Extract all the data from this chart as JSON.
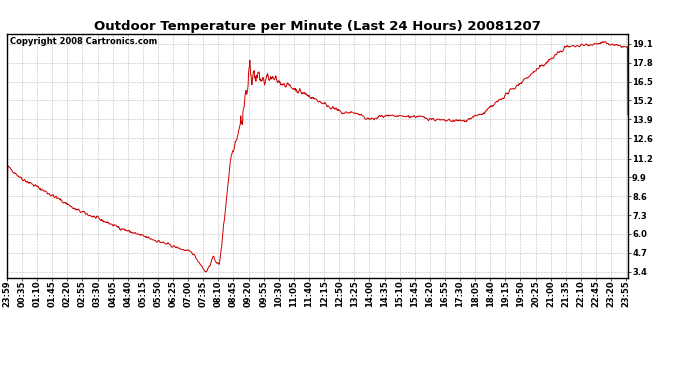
{
  "title": "Outdoor Temperature per Minute (Last 24 Hours) 20081207",
  "copyright_text": "Copyright 2008 Cartronics.com",
  "line_color": "#cc0000",
  "bg_color": "#ffffff",
  "grid_color": "#bbbbbb",
  "yticks": [
    3.4,
    4.7,
    6.0,
    7.3,
    8.6,
    9.9,
    11.2,
    12.6,
    13.9,
    15.2,
    16.5,
    17.8,
    19.1
  ],
  "ylim": [
    3.0,
    19.8
  ],
  "xtick_labels": [
    "23:59",
    "00:35",
    "01:10",
    "01:45",
    "02:20",
    "02:55",
    "03:30",
    "04:05",
    "04:40",
    "05:15",
    "05:50",
    "06:25",
    "07:00",
    "07:35",
    "08:10",
    "08:45",
    "09:20",
    "09:55",
    "10:30",
    "11:05",
    "11:40",
    "12:15",
    "12:50",
    "13:25",
    "14:00",
    "14:35",
    "15:10",
    "15:45",
    "16:20",
    "16:55",
    "17:30",
    "18:05",
    "18:40",
    "19:15",
    "19:50",
    "20:25",
    "21:00",
    "21:35",
    "22:10",
    "22:45",
    "23:20",
    "23:55"
  ],
  "figsize": [
    6.9,
    3.75
  ],
  "dpi": 100
}
